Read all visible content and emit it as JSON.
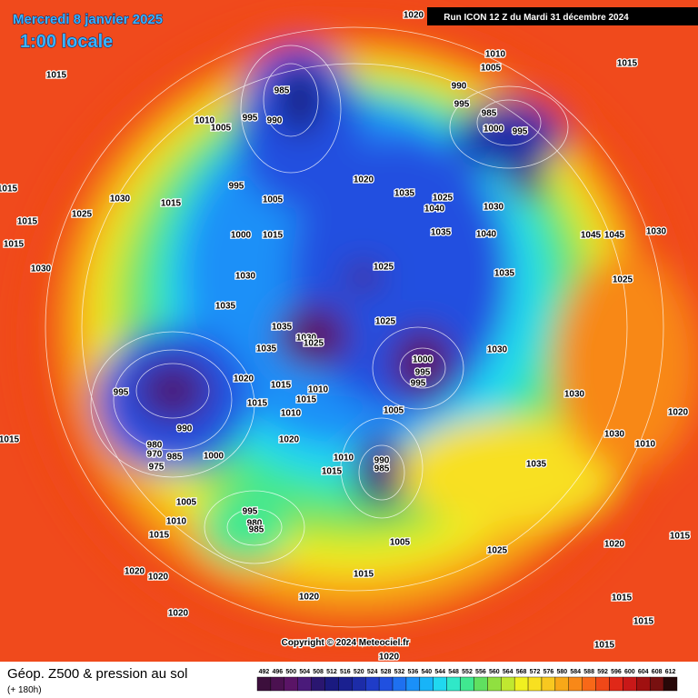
{
  "header": {
    "date": "Mercredi 8 janvier 2025",
    "time": "1:00 locale",
    "run": "Run ICON 12 Z du Mardi 31 décembre 2024"
  },
  "footer": {
    "copyright": "Copyright © 2024 Meteociel.fr"
  },
  "isobar_labels": [
    "1020",
    "1010",
    "1005",
    "1015",
    "1015",
    "985",
    "990",
    "995",
    "985",
    "1000",
    "995",
    "1010",
    "1005",
    "990",
    "995",
    "1020",
    "1015",
    "995",
    "1005",
    "1035",
    "1025",
    "1040",
    "1030",
    "1030",
    "1025",
    "1015",
    "1015",
    "1000",
    "1015",
    "1035",
    "1040",
    "1045",
    "1045",
    "1030",
    "1015",
    "1030",
    "1025",
    "1030",
    "1035",
    "1025",
    "1035",
    "1035",
    "1030",
    "1025",
    "1025",
    "1035",
    "1030",
    "1000",
    "995",
    "995",
    "995",
    "1020",
    "1015",
    "1015",
    "1010",
    "1030",
    "1015",
    "1010",
    "1020",
    "990",
    "1005",
    "1020",
    "980",
    "970",
    "985",
    "975",
    "1000",
    "1010",
    "990",
    "985",
    "1015",
    "1010",
    "1030",
    "1035",
    "1005",
    "995",
    "980",
    "985",
    "1010",
    "1015",
    "1005",
    "1025",
    "1020",
    "1015",
    "1020",
    "1020",
    "1015",
    "1020",
    "1020",
    "1015",
    "1015",
    "1015",
    "1020",
    "1015"
  ],
  "legend": {
    "title": "Géop. Z500 & pression au sol",
    "subtitle": "(+ 180h)",
    "levels": [
      492,
      496,
      500,
      504,
      508,
      512,
      516,
      520,
      524,
      528,
      532,
      536,
      540,
      544,
      548,
      552,
      556,
      560,
      564,
      568,
      572,
      576,
      580,
      584,
      588,
      592,
      596,
      600,
      604,
      608,
      612
    ],
    "colors": [
      "#3c0f3c",
      "#4b1150",
      "#5a1466",
      "#4a1a7a",
      "#2a1670",
      "#1a1a80",
      "#1a2090",
      "#1c2ca8",
      "#1f3cc8",
      "#2050e0",
      "#1e70f0",
      "#1a90f8",
      "#18b4f8",
      "#20d8f0",
      "#30e8c8",
      "#40e890",
      "#60e060",
      "#90e040",
      "#c0e830",
      "#f0f020",
      "#f8e020",
      "#f8c820",
      "#f8a818",
      "#f88818",
      "#f86818",
      "#f04818",
      "#e02818",
      "#c81818",
      "#a01010",
      "#781010",
      "#280808"
    ]
  }
}
